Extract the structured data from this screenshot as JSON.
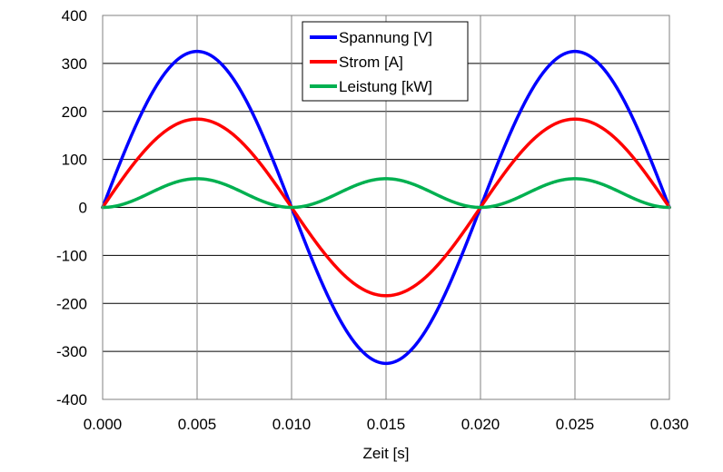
{
  "chart_data": {
    "type": "line",
    "title": "",
    "xlabel": "Zeit [s]",
    "ylabel": "",
    "xlim": [
      0,
      0.03
    ],
    "ylim": [
      -400,
      400
    ],
    "x_ticks": [
      "0.000",
      "0.005",
      "0.010",
      "0.015",
      "0.020",
      "0.025",
      "0.030"
    ],
    "y_ticks": [
      "400",
      "300",
      "200",
      "100",
      "0",
      "-100",
      "-200",
      "-300",
      "-400"
    ],
    "grid": true,
    "legend_position": "top-center",
    "series": [
      {
        "name": "Spannung [V]",
        "color": "#0000ff",
        "amplitude": 325,
        "frequency_hz": 50,
        "shape": "sine"
      },
      {
        "name": "Strom [A]",
        "color": "#ff0000",
        "amplitude": 184,
        "frequency_hz": 50,
        "shape": "sine"
      },
      {
        "name": "Leistung [kW]",
        "color": "#00b050",
        "amplitude": 59.8,
        "frequency_hz": 50,
        "shape": "sine_squared"
      }
    ],
    "sample_points": {
      "x": [
        0,
        0.0025,
        0.005,
        0.0075,
        0.01,
        0.0125,
        0.015,
        0.0175,
        0.02,
        0.0225,
        0.025,
        0.0275,
        0.03
      ],
      "Spannung [V]": [
        0,
        229.8,
        325,
        229.8,
        0,
        -229.8,
        -325,
        -229.8,
        0,
        229.8,
        325,
        229.8,
        0
      ],
      "Strom [A]": [
        0,
        130.1,
        184,
        130.1,
        0,
        -130.1,
        -184,
        -130.1,
        0,
        130.1,
        184,
        130.1,
        0
      ],
      "Leistung [kW]": [
        0,
        29.9,
        59.8,
        29.9,
        0,
        29.9,
        59.8,
        29.9,
        0,
        29.9,
        59.8,
        29.9,
        0
      ]
    }
  }
}
